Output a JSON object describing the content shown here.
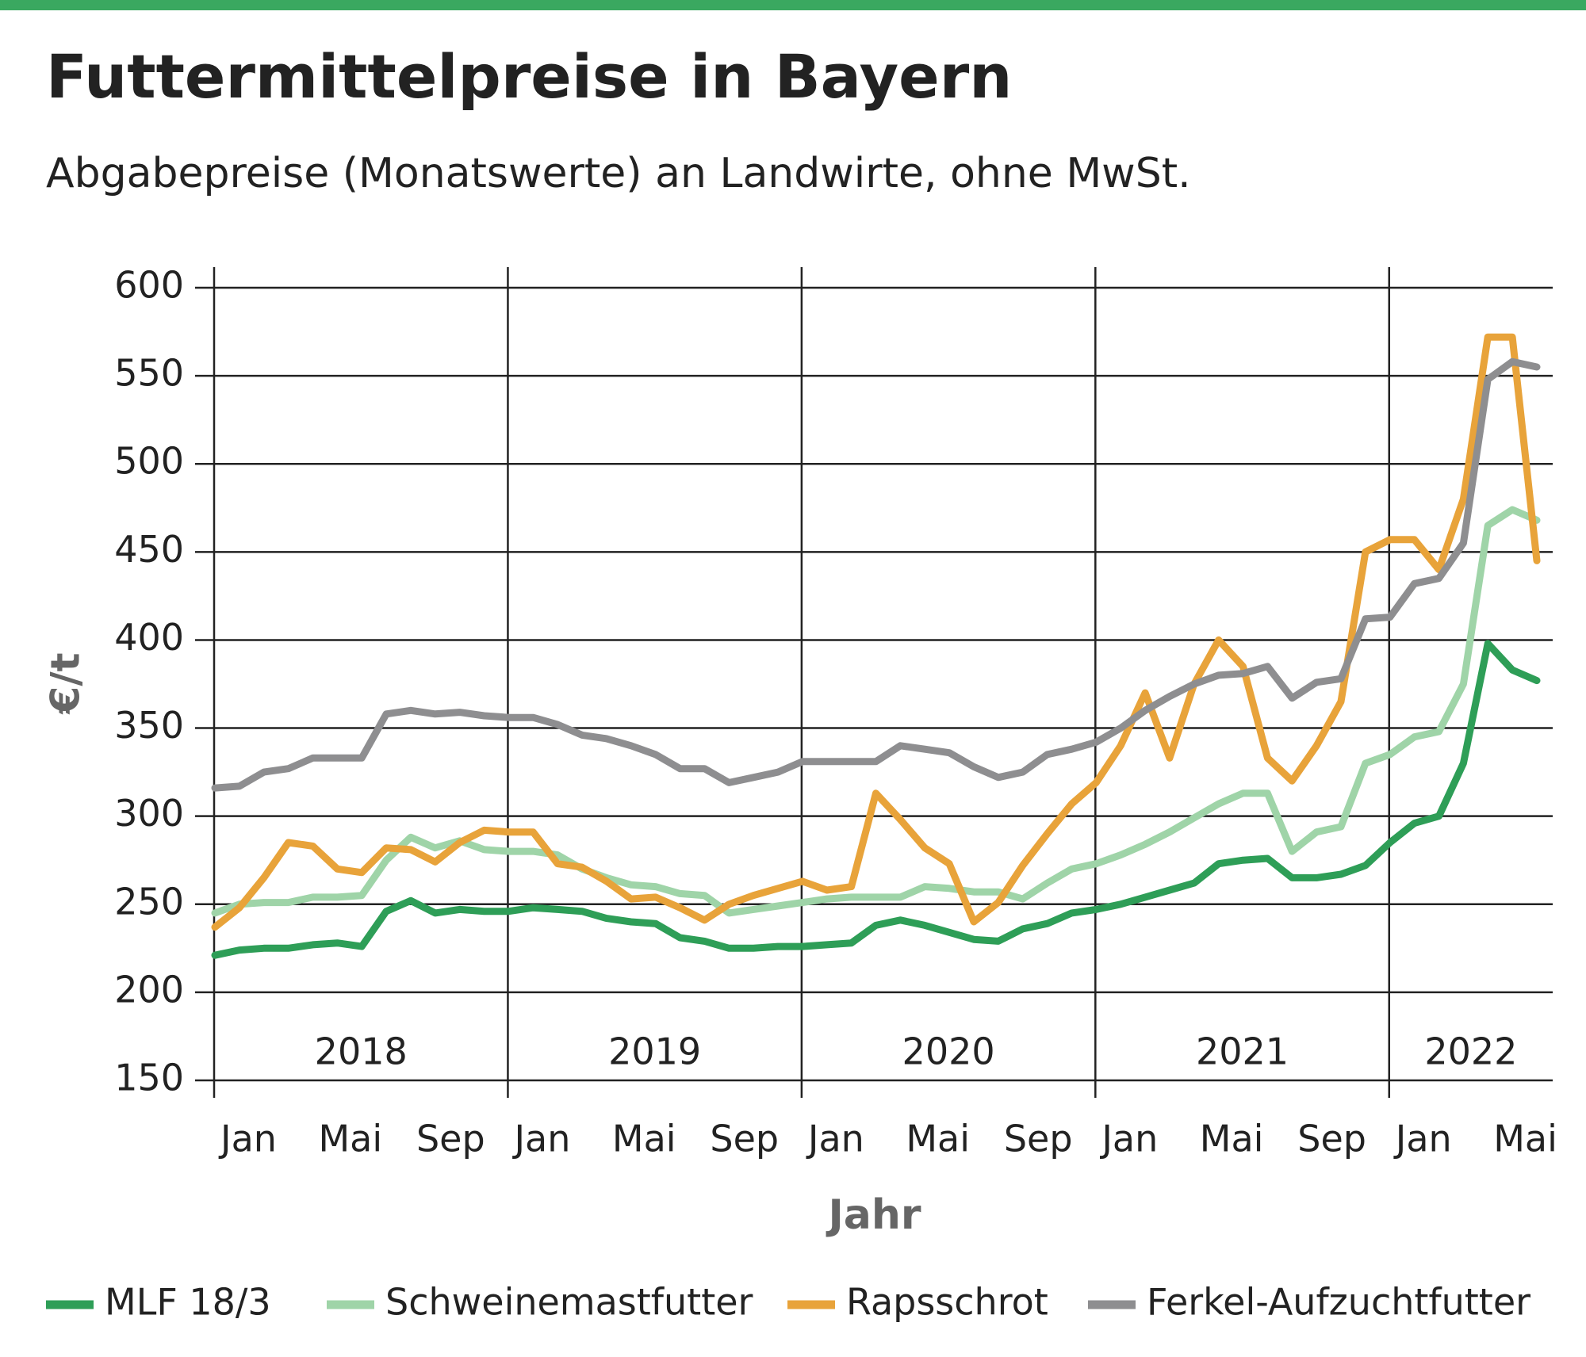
{
  "chart_data": {
    "type": "line",
    "title": "Futtermittelpreise in Bayern",
    "subtitle": "Abgabepreise (Monatswerte) an Landwirte, ohne MwSt.",
    "y_label": "€/t",
    "x_label": "Jahr",
    "year_labels": [
      "2018",
      "2019",
      "2020",
      "2021",
      "2022"
    ],
    "categories": [
      "Jan",
      null,
      null,
      null,
      "Mai",
      null,
      null,
      null,
      "Sep",
      null,
      null,
      null,
      "Jan",
      null,
      null,
      null,
      "Mai",
      null,
      null,
      null,
      "Sep",
      null,
      null,
      null,
      "Jan",
      null,
      null,
      null,
      "Mai",
      null,
      null,
      null,
      "Sep",
      null,
      null,
      null,
      "Jan",
      null,
      null,
      null,
      "Mai",
      null,
      null,
      null,
      "Sep",
      null,
      null,
      null,
      "Jan",
      null,
      null,
      null,
      "Mai",
      null,
      null
    ],
    "ylim": [
      150,
      600
    ],
    "yticks": [
      150,
      200,
      250,
      300,
      350,
      400,
      450,
      500,
      550,
      600
    ],
    "grid": true,
    "series": [
      {
        "name": "MLF 18/3",
        "color": "#2e9e57",
        "values": [
          221,
          224,
          225,
          225,
          227,
          228,
          226,
          246,
          252,
          245,
          247,
          246,
          246,
          248,
          247,
          246,
          242,
          240,
          239,
          231,
          229,
          225,
          225,
          226,
          226,
          227,
          228,
          238,
          241,
          238,
          234,
          230,
          229,
          236,
          239,
          245,
          247,
          250,
          254,
          258,
          262,
          273,
          275,
          276,
          265,
          265,
          267,
          272,
          285,
          296,
          300,
          330,
          398,
          383,
          377
        ]
      },
      {
        "name": "Schweinemastfutter",
        "color": "#9fd4a8",
        "values": [
          245,
          250,
          251,
          251,
          254,
          254,
          255,
          275,
          288,
          282,
          286,
          281,
          280,
          280,
          278,
          270,
          265,
          261,
          260,
          256,
          255,
          245,
          247,
          249,
          251,
          253,
          254,
          254,
          254,
          260,
          259,
          257,
          257,
          253,
          262,
          270,
          273,
          278,
          284,
          291,
          299,
          307,
          313,
          313,
          280,
          291,
          294,
          330,
          335,
          345,
          348,
          375,
          465,
          474,
          468
        ]
      },
      {
        "name": "Rapsschrot",
        "color": "#e8a33a",
        "values": [
          237,
          248,
          265,
          285,
          283,
          270,
          268,
          282,
          281,
          274,
          285,
          292,
          291,
          291,
          273,
          271,
          263,
          253,
          254,
          248,
          241,
          250,
          255,
          259,
          263,
          258,
          260,
          313,
          298,
          282,
          273,
          240,
          251,
          272,
          290,
          307,
          319,
          340,
          370,
          333,
          375,
          400,
          385,
          333,
          320,
          340,
          365,
          450,
          457,
          457,
          440,
          480,
          572,
          572,
          445
        ]
      },
      {
        "name": "Ferkel-Aufzuchtfutter",
        "color": "#8e8e90",
        "values": [
          316,
          317,
          325,
          327,
          333,
          333,
          333,
          358,
          360,
          358,
          359,
          357,
          356,
          356,
          352,
          346,
          344,
          340,
          335,
          327,
          327,
          319,
          322,
          325,
          331,
          331,
          331,
          331,
          340,
          338,
          336,
          328,
          322,
          325,
          335,
          338,
          342,
          350,
          360,
          368,
          375,
          380,
          381,
          385,
          367,
          376,
          378,
          412,
          413,
          432,
          435,
          455,
          548,
          558,
          555
        ]
      }
    ]
  }
}
